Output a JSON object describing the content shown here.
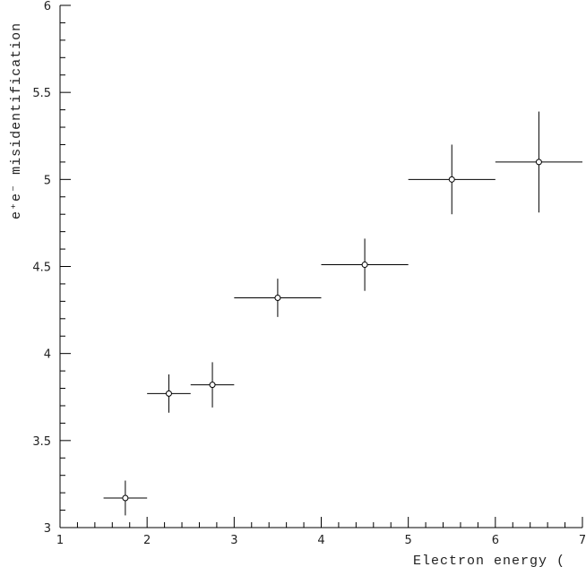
{
  "chart_data": {
    "type": "scatter",
    "xlabel": "Electron energy (",
    "ylabel": "e⁺e⁻  misidentification",
    "x": [
      1.75,
      2.25,
      2.75,
      3.5,
      4.5,
      5.5,
      6.5
    ],
    "xerr": [
      0.25,
      0.25,
      0.25,
      0.5,
      0.5,
      0.5,
      0.5
    ],
    "y": [
      3.17,
      3.77,
      3.82,
      4.32,
      4.51,
      5.0,
      5.1
    ],
    "yerr": [
      0.1,
      0.11,
      0.13,
      0.11,
      0.15,
      0.2,
      0.29
    ],
    "color": "#000000",
    "xlim": [
      1,
      7
    ],
    "ylim": [
      3,
      6
    ],
    "xticks": [
      1,
      2,
      3,
      4,
      5,
      6,
      7
    ],
    "yticks": [
      3,
      3.5,
      4,
      4.5,
      5,
      5.5,
      6
    ]
  }
}
